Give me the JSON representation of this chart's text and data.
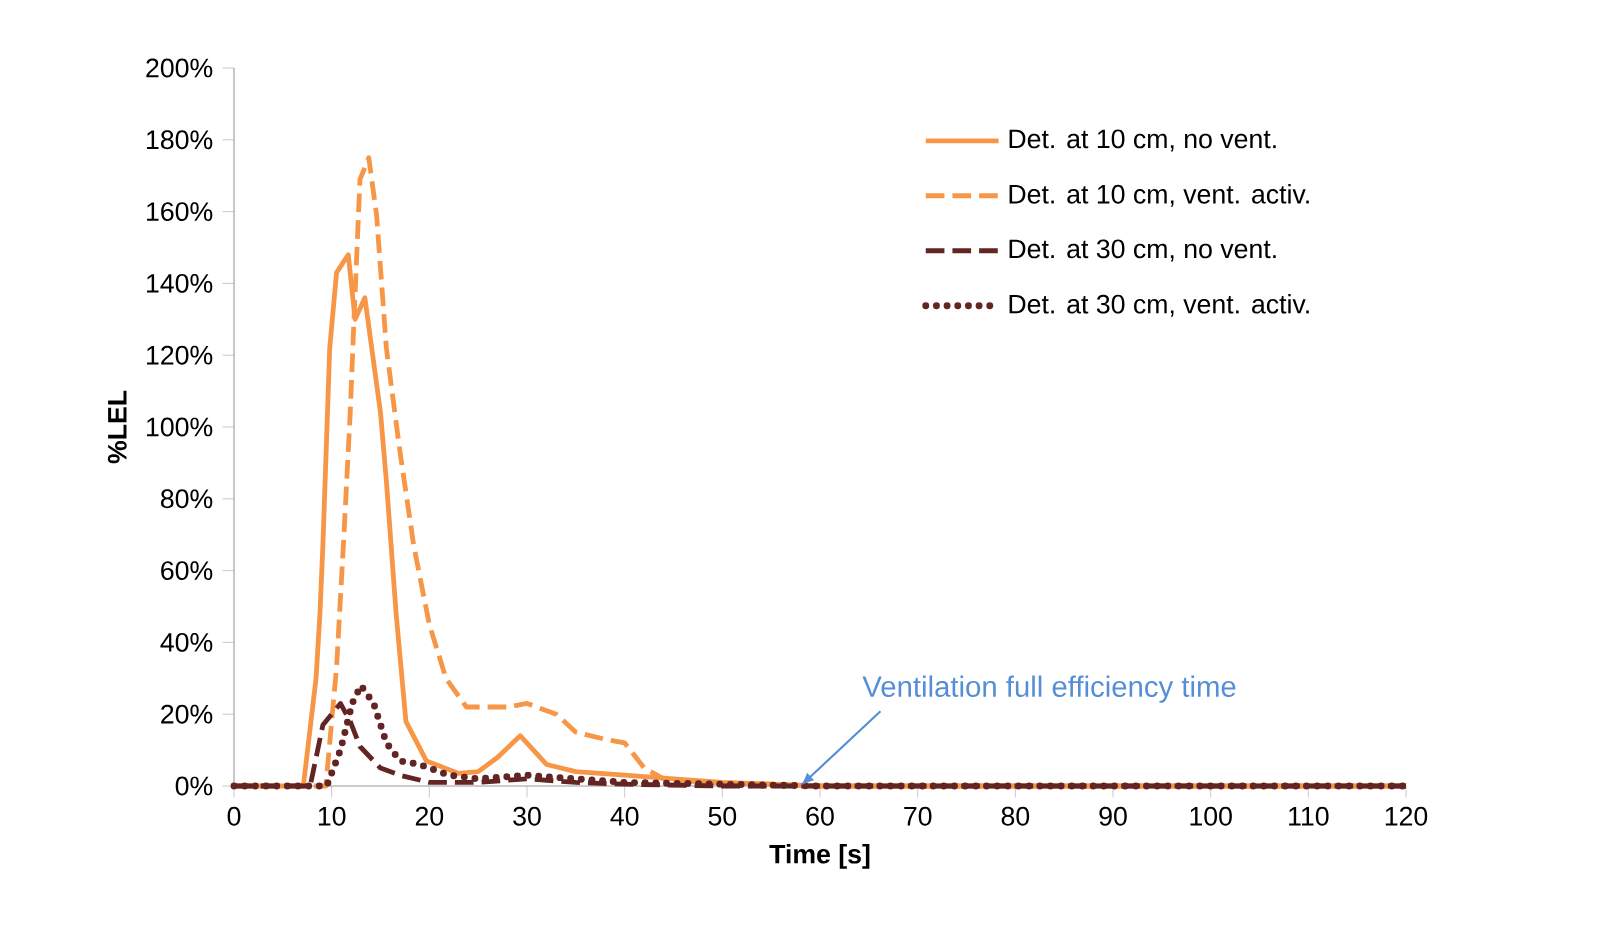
{
  "chart_data": {
    "type": "line",
    "xlabel": "Time [s]",
    "ylabel": "%LEL",
    "xlim": [
      0,
      120
    ],
    "xticks": [
      0,
      10,
      20,
      30,
      40,
      50,
      60,
      70,
      80,
      90,
      100,
      110,
      120
    ],
    "ylim": [
      0,
      200
    ],
    "yticks": [
      {
        "value": 0,
        "label": "0%"
      },
      {
        "value": 20,
        "label": "20%"
      },
      {
        "value": 40,
        "label": "40%"
      },
      {
        "value": 60,
        "label": "60%"
      },
      {
        "value": 80,
        "label": "80%"
      },
      {
        "value": 100,
        "label": "100%"
      },
      {
        "value": 120,
        "label": "120%"
      },
      {
        "value": 140,
        "label": "140%"
      },
      {
        "value": 160,
        "label": "160%"
      },
      {
        "value": 180,
        "label": "180%"
      },
      {
        "value": 200,
        "label": "200%"
      }
    ],
    "grid": false,
    "legend": "top right",
    "marker": "none",
    "annotations": [
      {
        "text": "Ventilation full efficiency time",
        "x": 58,
        "y": 0
      }
    ],
    "series": [
      {
        "name": "Det. at 10 cm, no vent.",
        "color": "#f79646",
        "line_style": "solid",
        "x": [
          0,
          5,
          7.1,
          8.4,
          8.8,
          9.1,
          9.8,
          10.5,
          11.7,
          12.4,
          13.4,
          15,
          15.6,
          16.6,
          17.6,
          19.7,
          23,
          25,
          27,
          29.3,
          32,
          35,
          40,
          45,
          50,
          55,
          60,
          120
        ],
        "values": [
          0,
          0,
          0,
          30,
          48,
          67,
          122,
          143,
          148,
          130,
          136,
          104,
          85,
          48,
          18,
          7,
          3.5,
          4,
          8,
          14,
          6,
          4,
          3,
          2,
          1,
          0.5,
          0,
          0
        ]
      },
      {
        "name": "Det. at 10 cm, vent. activ.",
        "color": "#f79646",
        "line_style": "dashed",
        "x": [
          0,
          5,
          9.4,
          10.5,
          11.2,
          11.9,
          12.3,
          12.9,
          13.8,
          14.6,
          15.6,
          17,
          18.4,
          20,
          21.7,
          23.8,
          25,
          28,
          30,
          33,
          35,
          38,
          40,
          42,
          44,
          48,
          55,
          60,
          120
        ],
        "values": [
          0,
          0,
          0,
          33,
          67,
          104,
          131,
          169,
          175,
          159,
          122,
          93,
          67,
          45,
          30,
          22,
          22,
          22,
          23,
          20,
          15,
          13,
          12,
          5,
          2,
          1,
          0.5,
          0,
          0
        ]
      },
      {
        "name": "Det. at 30 cm, no vent.",
        "color": "#632523",
        "line_style": "dashed",
        "x": [
          0,
          5,
          7.8,
          9.1,
          10.9,
          11.9,
          12.9,
          15,
          17,
          20,
          25,
          30,
          35,
          40,
          50,
          120
        ],
        "values": [
          0,
          0,
          0,
          17,
          23,
          18,
          11,
          5,
          3,
          1,
          1,
          2,
          1,
          0.5,
          0,
          0
        ]
      },
      {
        "name": "Det. at 30 cm, vent. activ.",
        "color": "#632523",
        "line_style": "dotted",
        "x": [
          0,
          5,
          9.5,
          10.2,
          10.9,
          12.1,
          13,
          14.3,
          15.6,
          17,
          19,
          22,
          25,
          30,
          35,
          40,
          50,
          60,
          120
        ],
        "values": [
          0,
          0,
          0,
          5,
          10,
          23,
          28,
          23,
          12,
          7,
          6,
          3,
          2,
          3,
          2,
          1,
          0.5,
          0,
          0
        ]
      }
    ]
  }
}
